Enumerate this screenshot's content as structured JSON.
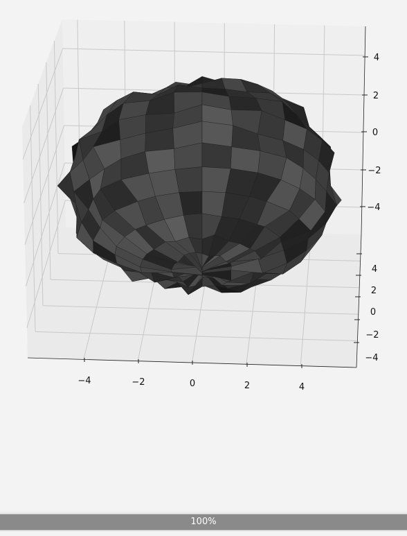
{
  "chart_data": {
    "type": "surface3d",
    "title": "",
    "xlabel": "",
    "ylabel": "",
    "zlabel": "",
    "x_ticks": [
      "−4",
      "−2",
      "0",
      "2",
      "4"
    ],
    "y_ticks": [
      "4",
      "2",
      "0",
      "−2",
      "−4"
    ],
    "z_ticks": [
      "4",
      "2",
      "0",
      "−2",
      "−4"
    ],
    "xlim": [
      -6,
      6
    ],
    "ylim": [
      -6,
      6
    ],
    "zlim": [
      -6,
      6
    ],
    "grid": true,
    "surface": {
      "shape": "bumpy-sphere",
      "radius": 5,
      "face_color": "#2e2e2e",
      "edge_color": "#1a1a1a",
      "lat_steps": 14,
      "lon_steps": 28,
      "noise": 0.35
    },
    "colors": {
      "pane": "#eaeaea",
      "gridline": "#c8c8c8",
      "axis": "#222222"
    }
  },
  "status": {
    "progress_label": "100%",
    "progress_value": 1.0
  }
}
